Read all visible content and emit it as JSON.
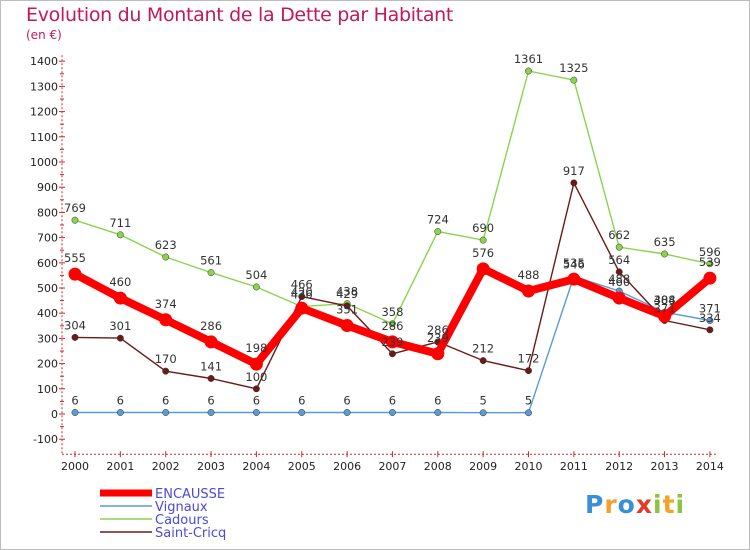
{
  "chart_data": {
    "type": "line",
    "title": "Evolution du Montant de la Dette par Habitant",
    "unit_label": "(en €)",
    "x": [
      "2000",
      "2001",
      "2002",
      "2003",
      "2004",
      "2005",
      "2006",
      "2007",
      "2008",
      "2009",
      "2010",
      "2011",
      "2012",
      "2013",
      "2014"
    ],
    "ylim": [
      -100,
      1400
    ],
    "yticks": [
      -100,
      0,
      100,
      200,
      300,
      400,
      500,
      600,
      700,
      800,
      900,
      1000,
      1100,
      1200,
      1300,
      1400
    ],
    "grid": false,
    "legend_position": "bottom-left",
    "series": [
      {
        "name": "ENCAUSSE",
        "color": "#ff0000",
        "values": [
          555,
          460,
          374,
          286,
          198,
          420,
          351,
          286,
          239,
          576,
          488,
          535,
          460,
          388,
          539
        ]
      },
      {
        "name": "Vignaux",
        "color": "#5b9bd5",
        "values": [
          6,
          6,
          6,
          6,
          6,
          6,
          6,
          6,
          6,
          5,
          5,
          546,
          488,
          404,
          371
        ]
      },
      {
        "name": "Cadours",
        "color": "#8bd34e",
        "values": [
          769,
          711,
          623,
          561,
          504,
          426,
          438,
          358,
          724,
          690,
          1361,
          1325,
          662,
          635,
          596
        ]
      },
      {
        "name": "Saint-Cricq",
        "color": "#6b1a1a",
        "values": [
          304,
          301,
          170,
          141,
          100,
          466,
          429,
          239,
          286,
          212,
          172,
          917,
          564,
          371,
          334
        ]
      }
    ]
  },
  "logo": {
    "text": "Proxiti",
    "colors": [
      "#3a8fd6",
      "#f2a12a",
      "#3a8fd6",
      "#e23b2a",
      "#8bc540",
      "#f2a12a",
      "#8bc540"
    ]
  }
}
